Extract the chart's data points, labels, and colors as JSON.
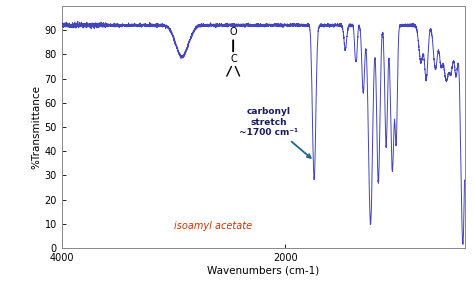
{
  "xlabel": "Wavenumbers (cm-1)",
  "ylabel": "%Transmittance",
  "xlim": [
    4000,
    400
  ],
  "ylim": [
    0,
    100
  ],
  "yticks": [
    0,
    10,
    20,
    30,
    40,
    50,
    60,
    70,
    80,
    90
  ],
  "xticks": [
    4000,
    2000
  ],
  "line_color": "#4444bb",
  "bg_color": "#ffffff",
  "annotation_text": "carbonyl\nstretch\n~1700 cm⁻¹",
  "label_text": "isoamyl acetate",
  "label_color": "#cc3300",
  "arrow_color": "#226688"
}
